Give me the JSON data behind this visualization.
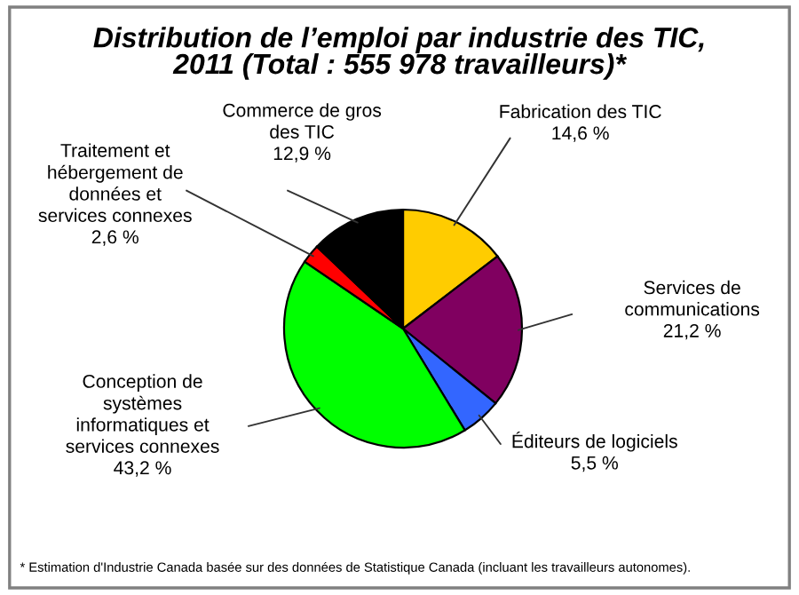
{
  "chart_data": {
    "type": "pie",
    "title": "Distribution de l’emploi par industrie des TIC,\n2011 (Total : 555 978 travailleurs)*",
    "categories": [
      "Fabrication des TIC",
      "Services de\ncommunications",
      "Éditeurs de logiciels",
      "Conception de\nsystèmes\ninformatiques et\nservices connexes",
      "Traitement et\nhébergement de\ndonnées et\nservices connexes",
      "Commerce de gros\ndes TIC"
    ],
    "values": [
      14.6,
      21.2,
      5.5,
      43.2,
      2.6,
      12.9
    ],
    "value_labels": [
      "14,6 %",
      "21,2 %",
      "5,5 %",
      "43,2 %",
      "2,6 %",
      "12,9 %"
    ],
    "colors": [
      "#ffcc00",
      "#800060",
      "#3366ff",
      "#00ff00",
      "#ff0000",
      "#000000"
    ],
    "annotations": [
      "* Estimation d'Industrie Canada basée sur des données de Statistique Canada (incluant les travailleurs autonomes)."
    ],
    "legend": false
  }
}
